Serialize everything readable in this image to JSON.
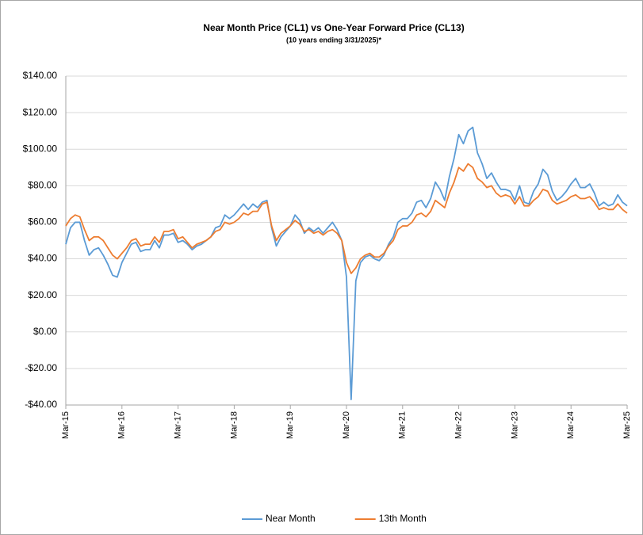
{
  "chart_data": {
    "type": "line",
    "title": "Near Month Price (CL1) vs One-Year Forward Price (CL13)",
    "subtitle": "(10 years ending  3/31/2025)*",
    "x": [
      "2015-03",
      "2015-04",
      "2015-05",
      "2015-06",
      "2015-07",
      "2015-08",
      "2015-09",
      "2015-10",
      "2015-11",
      "2015-12",
      "2016-01",
      "2016-02",
      "2016-03",
      "2016-04",
      "2016-05",
      "2016-06",
      "2016-07",
      "2016-08",
      "2016-09",
      "2016-10",
      "2016-11",
      "2016-12",
      "2017-01",
      "2017-02",
      "2017-03",
      "2017-04",
      "2017-05",
      "2017-06",
      "2017-07",
      "2017-08",
      "2017-09",
      "2017-10",
      "2017-11",
      "2017-12",
      "2018-01",
      "2018-02",
      "2018-03",
      "2018-04",
      "2018-05",
      "2018-06",
      "2018-07",
      "2018-08",
      "2018-09",
      "2018-10",
      "2018-11",
      "2018-12",
      "2019-01",
      "2019-02",
      "2019-03",
      "2019-04",
      "2019-05",
      "2019-06",
      "2019-07",
      "2019-08",
      "2019-09",
      "2019-10",
      "2019-11",
      "2019-12",
      "2020-01",
      "2020-02",
      "2020-03",
      "2020-04",
      "2020-05",
      "2020-06",
      "2020-07",
      "2020-08",
      "2020-09",
      "2020-10",
      "2020-11",
      "2020-12",
      "2021-01",
      "2021-02",
      "2021-03",
      "2021-04",
      "2021-05",
      "2021-06",
      "2021-07",
      "2021-08",
      "2021-09",
      "2021-10",
      "2021-11",
      "2021-12",
      "2022-01",
      "2022-02",
      "2022-03",
      "2022-04",
      "2022-05",
      "2022-06",
      "2022-07",
      "2022-08",
      "2022-09",
      "2022-10",
      "2022-11",
      "2022-12",
      "2023-01",
      "2023-02",
      "2023-03",
      "2023-04",
      "2023-05",
      "2023-06",
      "2023-07",
      "2023-08",
      "2023-09",
      "2023-10",
      "2023-11",
      "2023-12",
      "2024-01",
      "2024-02",
      "2024-03",
      "2024-04",
      "2024-05",
      "2024-06",
      "2024-07",
      "2024-08",
      "2024-09",
      "2024-10",
      "2024-11",
      "2024-12",
      "2025-01",
      "2025-02",
      "2025-03"
    ],
    "series": [
      {
        "name": "Near Month",
        "color": "#5b9bd5",
        "values": [
          48,
          57,
          60,
          60,
          50,
          42,
          45,
          46,
          42,
          37,
          31,
          30,
          38,
          43,
          48,
          49,
          44,
          45,
          45,
          50,
          46,
          53,
          53,
          54,
          49,
          50,
          48,
          45,
          47,
          48,
          50,
          52,
          57,
          58,
          64,
          62,
          64,
          67,
          70,
          67,
          70,
          68,
          71,
          72,
          57,
          47,
          52,
          55,
          58,
          64,
          61,
          54,
          57,
          55,
          57,
          54,
          57,
          60,
          56,
          50,
          30,
          -37,
          28,
          38,
          41,
          42,
          40,
          39,
          42,
          48,
          52,
          60,
          62,
          62,
          65,
          71,
          72,
          68,
          73,
          82,
          78,
          72,
          85,
          95,
          108,
          103,
          110,
          112,
          98,
          92,
          84,
          87,
          82,
          78,
          78,
          77,
          72,
          80,
          71,
          70,
          77,
          81,
          89,
          86,
          77,
          72,
          74,
          77,
          81,
          84,
          79,
          79,
          81,
          76,
          69,
          71,
          69,
          70,
          75,
          71,
          69
        ]
      },
      {
        "name": "13th Month",
        "color": "#ed7d31",
        "values": [
          58,
          62,
          64,
          63,
          56,
          50,
          52,
          52,
          50,
          46,
          42,
          40,
          43,
          46,
          50,
          51,
          47,
          48,
          48,
          52,
          49,
          55,
          55,
          56,
          51,
          52,
          49,
          46,
          48,
          49,
          50,
          52,
          55,
          56,
          60,
          59,
          60,
          62,
          65,
          64,
          66,
          66,
          70,
          71,
          58,
          50,
          54,
          56,
          58,
          61,
          59,
          55,
          56,
          54,
          55,
          53,
          55,
          56,
          54,
          50,
          38,
          32,
          35,
          40,
          42,
          43,
          41,
          41,
          43,
          47,
          50,
          56,
          58,
          58,
          60,
          64,
          65,
          63,
          66,
          72,
          70,
          68,
          76,
          82,
          90,
          88,
          92,
          90,
          84,
          82,
          79,
          80,
          76,
          74,
          75,
          74,
          70,
          74,
          69,
          69,
          72,
          74,
          78,
          77,
          72,
          70,
          71,
          72,
          74,
          75,
          73,
          73,
          74,
          71,
          67,
          68,
          67,
          67,
          70,
          67,
          65
        ]
      }
    ],
    "xlim": [
      "2015-03",
      "2025-03"
    ],
    "xticks": [
      {
        "value": "2015-03",
        "label": "Mar-15"
      },
      {
        "value": "2016-03",
        "label": "Mar-16"
      },
      {
        "value": "2017-03",
        "label": "Mar-17"
      },
      {
        "value": "2018-03",
        "label": "Mar-18"
      },
      {
        "value": "2019-03",
        "label": "Mar-19"
      },
      {
        "value": "2020-03",
        "label": "Mar-20"
      },
      {
        "value": "2021-03",
        "label": "Mar-21"
      },
      {
        "value": "2022-03",
        "label": "Mar-22"
      },
      {
        "value": "2023-03",
        "label": "Mar-23"
      },
      {
        "value": "2024-03",
        "label": "Mar-24"
      },
      {
        "value": "2025-03",
        "label": "Mar-25"
      }
    ],
    "ylim": [
      -40,
      140
    ],
    "yticks": [
      {
        "value": -40,
        "label": "-$40.00"
      },
      {
        "value": -20,
        "label": "-$20.00"
      },
      {
        "value": 0,
        "label": "$0.00"
      },
      {
        "value": 20,
        "label": "$20.00"
      },
      {
        "value": 40,
        "label": "$40.00"
      },
      {
        "value": 60,
        "label": "$60.00"
      },
      {
        "value": 80,
        "label": "$80.00"
      },
      {
        "value": 100,
        "label": "$100.00"
      },
      {
        "value": 120,
        "label": "$120.00"
      },
      {
        "value": 140,
        "label": "$140.00"
      }
    ],
    "grid": true,
    "legend": "bottom"
  }
}
